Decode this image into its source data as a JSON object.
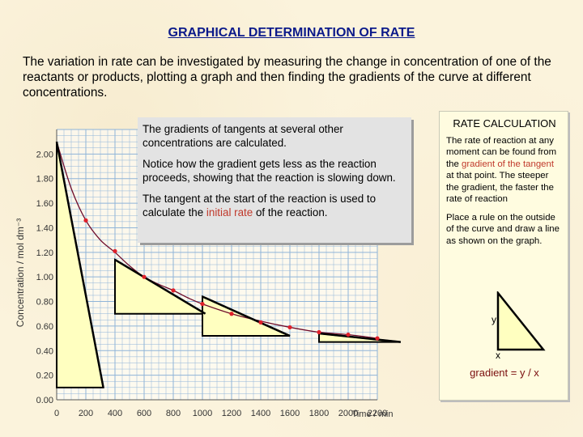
{
  "title": "GRAPHICAL DETERMINATION OF RATE",
  "intro": "The variation in rate can be investigated by measuring the change in concentration of one of the reactants or products, plotting a graph and then finding the gradients of the curve at different concentrations.",
  "box1": {
    "p1": "The gradients of tangents at several other concentrations are calculated.",
    "p2": "Notice how the gradient gets less as the reaction proceeds, showing that the reaction is slowing down.",
    "p3_pre": "The tangent at the start of the reaction is used to calculate the ",
    "p3_hl": "initial rate",
    "p3_post": " of the reaction."
  },
  "rate_calc": {
    "title": "RATE CALCULATION",
    "p1_pre": "The rate of reaction at any moment can be found from the ",
    "p1_hl": "gradient of the tangent",
    "p1_post": " at that point. The steeper the gradient, the faster the rate of reaction",
    "p2": "Place a rule on the outside of the curve and draw a line as shown on the graph.",
    "y_label": "y",
    "x_label": "x",
    "gradient_formula": "gradient  =  y / x"
  },
  "chart_data": {
    "type": "scatter",
    "title": "",
    "xlabel": "Time / min",
    "ylabel": "Concentration / mol dm⁻³",
    "xlim": [
      0,
      2200
    ],
    "ylim": [
      0,
      2.2
    ],
    "x_ticks": [
      "0",
      "200",
      "400",
      "600",
      "800",
      "1000",
      "1200",
      "1400",
      "1600",
      "1800",
      "2000",
      "2200"
    ],
    "y_ticks": [
      "0.00",
      "0.20",
      "0.40",
      "0.60",
      "0.80",
      "1.00",
      "1.20",
      "1.40",
      "1.60",
      "1.80",
      "2.00"
    ],
    "grid": true,
    "points": {
      "x": [
        200,
        400,
        600,
        800,
        1000,
        1200,
        1400,
        1600,
        1800,
        2000,
        2200
      ],
      "y": [
        1.46,
        1.21,
        1.0,
        0.89,
        0.78,
        0.7,
        0.63,
        0.59,
        0.55,
        0.53,
        0.5
      ]
    },
    "curve": {
      "x": [
        0,
        100,
        200,
        300,
        400,
        500,
        600,
        700,
        800,
        900,
        1000,
        1200,
        1400,
        1600,
        1800,
        2000,
        2200
      ],
      "y": [
        2.1,
        1.72,
        1.46,
        1.3,
        1.2,
        1.09,
        1.0,
        0.94,
        0.89,
        0.83,
        0.78,
        0.7,
        0.64,
        0.59,
        0.55,
        0.53,
        0.5
      ]
    },
    "tangents": [
      {
        "x": [
          0,
          320
        ],
        "y": [
          2.1,
          0.1
        ]
      },
      {
        "x": [
          400,
          1020
        ],
        "y": [
          1.14,
          0.7
        ]
      },
      {
        "x": [
          1000,
          1600
        ],
        "y": [
          0.84,
          0.52
        ]
      },
      {
        "x": [
          1800,
          2360
        ],
        "y": [
          0.54,
          0.47
        ]
      }
    ],
    "triangles": [
      {
        "x": [
          0,
          0,
          320
        ],
        "y": [
          2.1,
          0.1,
          0.1
        ]
      },
      {
        "x": [
          400,
          400,
          1020
        ],
        "y": [
          1.14,
          0.7,
          0.7
        ]
      },
      {
        "x": [
          1000,
          1000,
          1600
        ],
        "y": [
          0.84,
          0.52,
          0.52
        ]
      },
      {
        "x": [
          1800,
          1800,
          2360
        ],
        "y": [
          0.54,
          0.47,
          0.47
        ]
      }
    ]
  },
  "colors": {
    "title": "#0b1a8a",
    "grid": "#8fb4d8",
    "curve": "#6e0c2a",
    "points": "#e0202a",
    "triangle_fill": "#ffffc0",
    "highlight": "#c0392b"
  }
}
